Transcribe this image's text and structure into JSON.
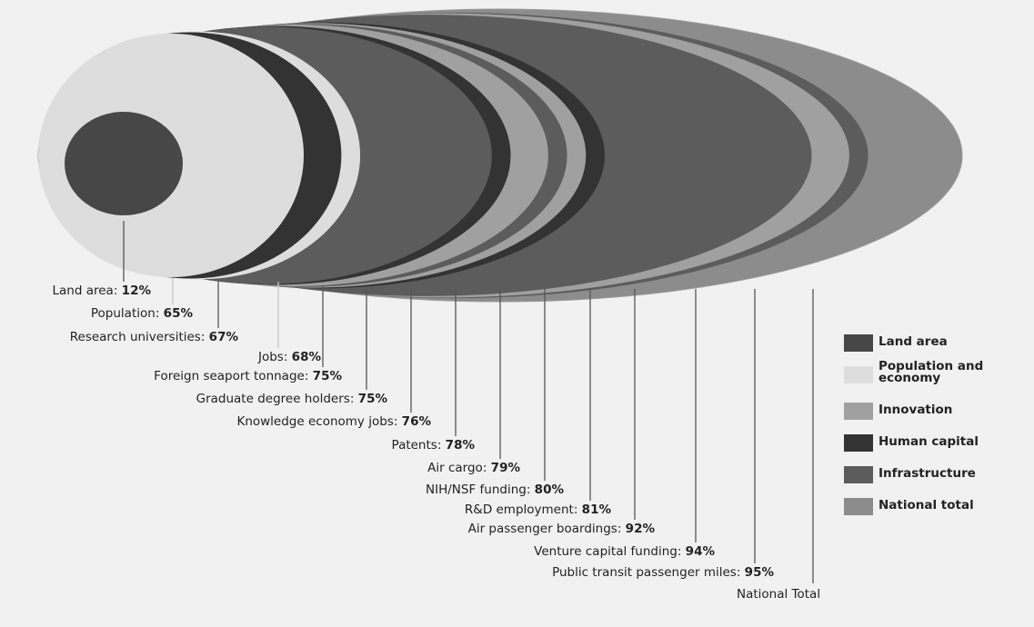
{
  "colors": {
    "background": "#f1f1f1",
    "land_area": "#474747",
    "population_and_economy": "#dddddd",
    "innovation": "#a0a0a0",
    "human_capital": "#333333",
    "infrastructure": "#5c5c5c",
    "national_total": "#8c8c8c",
    "leader_line": "#555555",
    "text": "#222222"
  },
  "legend": {
    "items": [
      {
        "label": "Land area",
        "category": "land_area",
        "color": "#474747"
      },
      {
        "label": "Population and economy",
        "category": "population_and_economy",
        "color": "#dddddd"
      },
      {
        "label": "Innovation",
        "category": "innovation",
        "color": "#a0a0a0"
      },
      {
        "label": "Human capital",
        "category": "human_capital",
        "color": "#333333"
      },
      {
        "label": "Infrastructure",
        "category": "infrastructure",
        "color": "#5c5c5c"
      },
      {
        "label": "National total",
        "category": "national_total",
        "color": "#8c8c8c"
      }
    ]
  },
  "chart_data": {
    "type": "bar",
    "title": "",
    "xlabel": "",
    "ylabel": "",
    "unit": "%",
    "categories": [
      "Land area",
      "Population",
      "Research universities",
      "Jobs",
      "Foreign seaport tonnage",
      "Graduate degree holders",
      "Knowledge economy jobs",
      "Patents",
      "Air cargo",
      "NIH/NSF funding",
      "R&D employment",
      "Air passenger boardings",
      "Venture capital funding",
      "Public transit passenger miles",
      "National Total"
    ],
    "values": [
      12,
      65,
      67,
      68,
      75,
      75,
      76,
      78,
      79,
      80,
      81,
      92,
      94,
      95,
      100
    ],
    "value_labels": [
      "12%",
      "65%",
      "67%",
      "68%",
      "75%",
      "75%",
      "76%",
      "78%",
      "79%",
      "80%",
      "81%",
      "92%",
      "94%",
      "95%",
      ""
    ],
    "series_category": [
      "land_area",
      "population_and_economy",
      "human_capital",
      "population_and_economy",
      "infrastructure",
      "human_capital",
      "human_capital",
      "innovation",
      "infrastructure",
      "innovation",
      "human_capital",
      "infrastructure",
      "innovation",
      "infrastructure",
      "national_total"
    ],
    "legend_position": "right",
    "grid": false
  }
}
